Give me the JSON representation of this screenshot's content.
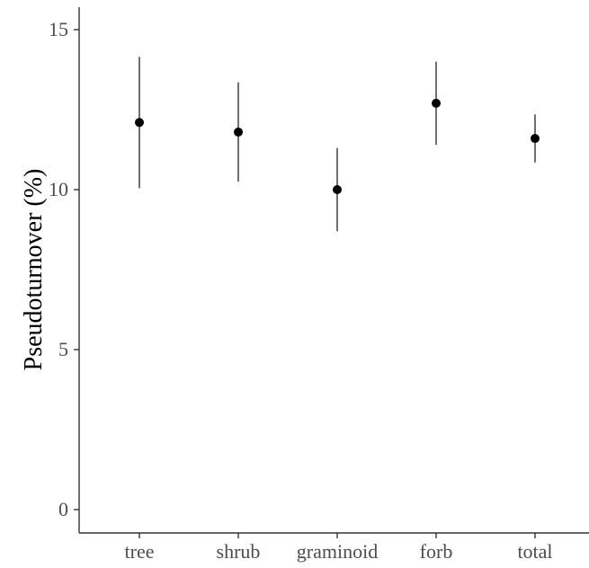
{
  "chart_data": {
    "type": "scatter",
    "subtype": "point-range",
    "title": "",
    "xlabel": "",
    "ylabel": "Pseudoturnover (%)",
    "categories": [
      "tree",
      "shrub",
      "graminoid",
      "forb",
      "total"
    ],
    "values": [
      12.1,
      11.8,
      10.0,
      12.7,
      11.6
    ],
    "lower": [
      10.05,
      10.25,
      8.7,
      11.4,
      10.85
    ],
    "upper": [
      14.15,
      13.35,
      11.3,
      14.0,
      12.35
    ],
    "ylim": [
      0,
      15.8
    ],
    "yticks": [
      0,
      5,
      10,
      15
    ],
    "ytick_labels": [
      "0",
      "5",
      "10",
      "15"
    ],
    "grid": false,
    "legend": "none",
    "colors": {
      "point": "#000000",
      "errorbar": "#333333",
      "axis": "#333333",
      "tick_text": "#4d4d4d"
    }
  }
}
